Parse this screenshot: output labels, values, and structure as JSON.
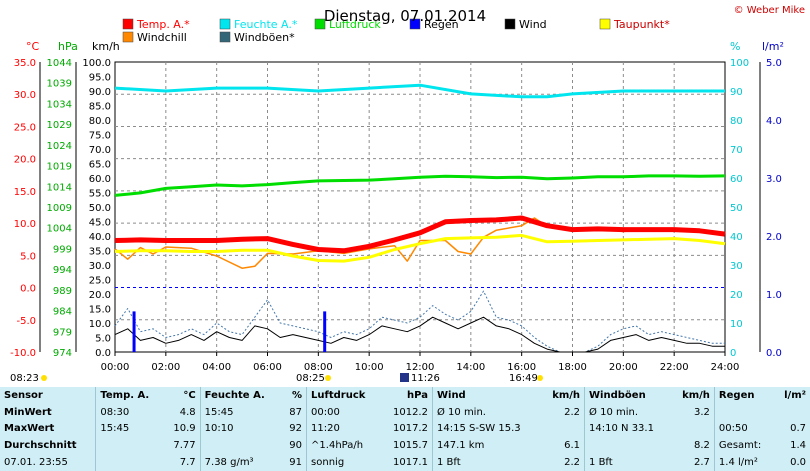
{
  "title": "Dienstag, 07.01.2014",
  "copyright": "© Weber Mike",
  "colors": {
    "temp": "#ff0000",
    "humidity": "#00e5ee",
    "pressure": "#00dd00",
    "rain": "#0000ff",
    "wind": "#000000",
    "dewpoint": "#ffff00",
    "windchill": "#ff8800",
    "gust": "#4477aa",
    "grid": "#8c8c8c",
    "zero": "#0000ff",
    "table_bg": "#cfeef5"
  },
  "axes": {
    "celsius_label": "°C",
    "celsius_ticks": [
      "35.0",
      "30.0",
      "25.0",
      "20.0",
      "15.0",
      "10.0",
      "5.0",
      "0.0",
      "-5.0",
      "-10.0"
    ],
    "hpa_label": "hPa",
    "hpa_ticks": [
      "1044",
      "1039",
      "1034",
      "1029",
      "1024",
      "1019",
      "1014",
      "1009",
      "1004",
      "999",
      "994",
      "989",
      "984",
      "979",
      "974"
    ],
    "kmh_label": "km/h",
    "kmh_ticks": [
      "100.0",
      "95.0",
      "90.0",
      "85.0",
      "80.0",
      "75.0",
      "70.0",
      "65.0",
      "60.0",
      "55.0",
      "50.0",
      "45.0",
      "40.0",
      "35.0",
      "30.0",
      "25.0",
      "20.0",
      "15.0",
      "10.0",
      "5.0",
      "0.0"
    ],
    "pct_label": "%",
    "pct_ticks": [
      "100",
      "90",
      "80",
      "70",
      "60",
      "50",
      "40",
      "30",
      "20",
      "10",
      "0"
    ],
    "rain_label": "l/m²",
    "rain_ticks": [
      "5.0",
      "4.0",
      "3.0",
      "2.0",
      "1.0",
      "0.0"
    ],
    "x_ticks": [
      "00:00",
      "02:00",
      "04:00",
      "06:00",
      "08:00",
      "10:00",
      "12:00",
      "14:00",
      "16:00",
      "18:00",
      "20:00",
      "22:00",
      "24:00"
    ]
  },
  "legend": [
    {
      "label": "Temp. A.*",
      "color": "#ff0000"
    },
    {
      "label": "Feuchte A.*",
      "color": "#00e5ee"
    },
    {
      "label": "Luftdruck",
      "color": "#00dd00"
    },
    {
      "label": "Regen",
      "color": "#0000ff"
    },
    {
      "label": "Wind",
      "color": "#000000"
    },
    {
      "label": "Taupunkt*",
      "color": "#ffff00"
    },
    {
      "label": "Windchill",
      "color": "#ff8800"
    },
    {
      "label": "Windböen*",
      "color": "#336677"
    }
  ],
  "markers": {
    "sunrise": "08:23",
    "sunset": "16:49",
    "noon": "08:25",
    "moon": "11:26"
  },
  "chart_data": {
    "type": "line",
    "x_unit": "hours",
    "xlim": [
      0,
      24
    ],
    "temperature_c": {
      "x": [
        0,
        1,
        2,
        3,
        4,
        5,
        6,
        7,
        8,
        9,
        10,
        11,
        12,
        13,
        14,
        15,
        16,
        17,
        18,
        19,
        20,
        21,
        22,
        23,
        24
      ],
      "y": [
        7.3,
        7.4,
        7.3,
        7.3,
        7.3,
        7.5,
        7.6,
        6.7,
        5.9,
        5.7,
        6.4,
        7.4,
        8.5,
        10.2,
        10.4,
        10.5,
        10.8,
        9.6,
        9.0,
        9.1,
        9.0,
        9.0,
        9.0,
        8.8,
        8.3
      ]
    },
    "dewpoint_c": {
      "x": [
        0,
        1,
        2,
        3,
        4,
        5,
        6,
        7,
        8,
        9,
        10,
        11,
        12,
        13,
        14,
        15,
        16,
        17,
        18,
        19,
        20,
        21,
        22,
        23,
        24
      ],
      "y": [
        5.6,
        5.7,
        5.7,
        5.6,
        5.6,
        5.8,
        5.8,
        4.9,
        4.2,
        4.1,
        4.7,
        5.9,
        6.8,
        7.6,
        7.7,
        7.8,
        8.1,
        7.1,
        7.2,
        7.3,
        7.4,
        7.5,
        7.6,
        7.3,
        6.8
      ]
    },
    "windchill_c": {
      "x": [
        0,
        0.5,
        1,
        1.5,
        2,
        3,
        4,
        5,
        5.5,
        6,
        7,
        8,
        9,
        10,
        11,
        11.5,
        12,
        13,
        13.5,
        14,
        14.5,
        15,
        16,
        16.5,
        17,
        18,
        19,
        20,
        21,
        22,
        23,
        24
      ],
      "y": [
        6.0,
        4.4,
        6.2,
        5.2,
        6.3,
        6.1,
        4.9,
        3.0,
        3.3,
        5.3,
        5.2,
        5.7,
        5.3,
        6.0,
        6.5,
        4.1,
        7.3,
        7.3,
        5.6,
        5.2,
        7.8,
        8.9,
        9.6,
        10.8,
        9.5,
        9.0,
        9.1,
        8.7,
        9.0,
        8.9,
        8.8,
        8.3
      ]
    },
    "humidity_pct": {
      "x": [
        0,
        2,
        4,
        6,
        8,
        10,
        12,
        14,
        16,
        17,
        18,
        20,
        22,
        24
      ],
      "y": [
        91,
        90,
        91,
        91,
        90,
        91,
        92,
        89,
        88,
        88,
        89,
        90,
        90,
        90
      ]
    },
    "pressure_hpa": {
      "x": [
        0,
        1,
        2,
        3,
        4,
        5,
        6,
        7,
        8,
        9,
        10,
        11,
        12,
        13,
        14,
        15,
        16,
        17,
        18,
        19,
        20,
        21,
        22,
        23,
        24
      ],
      "y": [
        1011.8,
        1012.4,
        1013.5,
        1013.9,
        1014.3,
        1014.1,
        1014.4,
        1014.9,
        1015.3,
        1015.4,
        1015.5,
        1015.8,
        1016.2,
        1016.4,
        1016.3,
        1016.1,
        1016.2,
        1015.8,
        1016.0,
        1016.3,
        1016.3,
        1016.5,
        1016.5,
        1016.4,
        1016.5
      ]
    },
    "wind_kmh": {
      "x": [
        0,
        0.5,
        1,
        1.5,
        2,
        2.5,
        3,
        3.5,
        4,
        4.5,
        5,
        5.5,
        6,
        6.5,
        7,
        7.5,
        8,
        8.5,
        9,
        9.5,
        10,
        10.5,
        11,
        11.5,
        12,
        12.5,
        13,
        13.5,
        14,
        14.5,
        15,
        15.5,
        16,
        16.5,
        17,
        17.5,
        18,
        18.5,
        19,
        19.5,
        20,
        20.5,
        21,
        21.5,
        22,
        22.5,
        23,
        23.5,
        24
      ],
      "y": [
        6,
        8,
        4,
        5,
        3,
        4,
        6,
        4,
        7,
        5,
        4,
        9,
        8,
        5,
        6,
        5,
        4,
        3,
        5,
        4,
        6,
        9,
        8,
        7,
        9,
        12,
        10,
        8,
        10,
        12,
        9,
        8,
        6,
        3,
        1,
        0,
        0,
        0,
        1,
        4,
        5,
        6,
        4,
        5,
        4,
        3,
        3,
        2,
        2
      ]
    },
    "gust_kmh": {
      "x": [
        0,
        0.5,
        1,
        1.5,
        2,
        2.5,
        3,
        3.5,
        4,
        4.5,
        5,
        5.5,
        6,
        6.5,
        7,
        7.5,
        8,
        8.5,
        9,
        9.5,
        10,
        10.5,
        11,
        11.5,
        12,
        12.5,
        13,
        13.5,
        14,
        14.5,
        15,
        15.5,
        16,
        16.5,
        17,
        17.5,
        18,
        18.5,
        19,
        19.5,
        20,
        20.5,
        21,
        21.5,
        22,
        22.5,
        23,
        23.5,
        24
      ],
      "y": [
        9,
        15,
        7,
        8,
        5,
        6,
        8,
        6,
        10,
        7,
        6,
        12,
        18,
        10,
        9,
        8,
        7,
        5,
        7,
        6,
        8,
        12,
        11,
        10,
        12,
        16,
        13,
        11,
        14,
        21,
        12,
        11,
        9,
        5,
        2,
        0,
        0,
        0,
        2,
        6,
        8,
        9,
        6,
        7,
        6,
        5,
        4,
        3,
        3
      ]
    },
    "rain_lm2": {
      "x": [
        0.75,
        8.25
      ],
      "y": [
        0.7,
        0.7
      ]
    }
  },
  "table": {
    "headers": [
      "Sensor",
      "Temp. A.",
      "°C",
      "Feuchte A.",
      "%",
      "Luftdruck",
      "hPa",
      "Wind",
      "km/h",
      "Windböen",
      "km/h",
      "Regen",
      "l/m²"
    ],
    "rows": [
      [
        "MinWert",
        "08:30",
        "4.8",
        "15:45",
        "87",
        "00:00",
        "1012.2",
        "Ø 10 min.",
        "2.2",
        "Ø 10 min.",
        "3.2",
        "",
        ""
      ],
      [
        "MaxWert",
        "15:45",
        "10.9",
        "10:10",
        "92",
        "11:20",
        "1017.2",
        "14:15     S-SW 15.3",
        "",
        "14:10       N 33.1",
        "",
        "00:50",
        "0.7"
      ],
      [
        "Durchschnitt",
        "",
        "7.77",
        "",
        "90",
        "^1.4hPa/h",
        "1015.7",
        "147.1 km",
        "6.1",
        "",
        "8.2",
        "Gesamt:",
        "1.4"
      ],
      [
        "07.01. 23:55",
        "",
        "7.7",
        "7.38 g/m³",
        "91",
        "sonnig",
        "1017.1",
        "1 Bft",
        "2.2",
        "1 Bft",
        "2.7",
        "1.4 l/m²",
        "0.0"
      ]
    ]
  }
}
